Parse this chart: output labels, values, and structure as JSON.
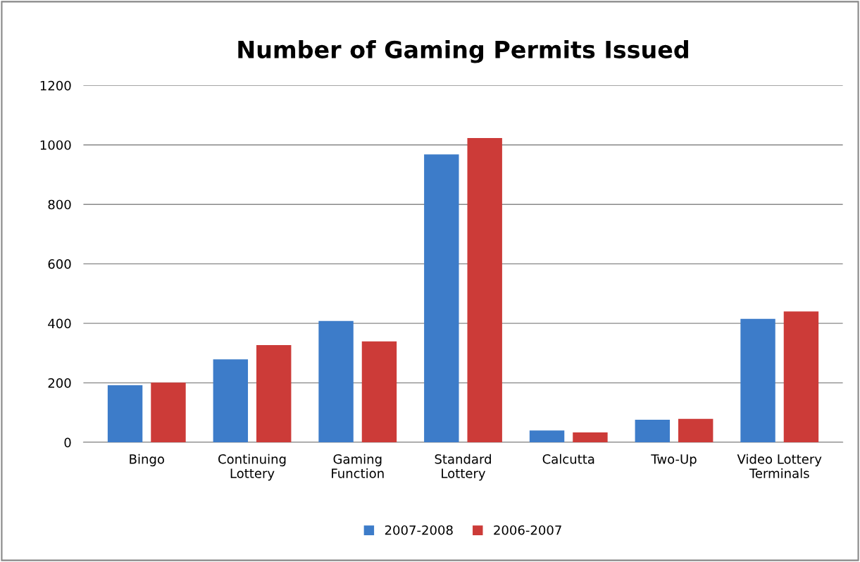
{
  "chart_data": {
    "type": "bar",
    "title": "Number of Gaming Permits Issued",
    "categories": [
      "Bingo",
      "Continuing\nLottery",
      "Gaming\nFunction",
      "Standard\nLottery",
      "Calcutta",
      "Two-Up",
      "Video Lottery\nTerminals"
    ],
    "series": [
      {
        "name": "2007-2008",
        "color": "#3d7cc9",
        "values": [
          192,
          279,
          408,
          968,
          40,
          76,
          415
        ]
      },
      {
        "name": "2006-2007",
        "color": "#cc3b38",
        "values": [
          201,
          327,
          339,
          1023,
          33,
          79,
          440
        ]
      }
    ],
    "ylim": [
      0,
      1200
    ],
    "yticks": [
      0,
      200,
      400,
      600,
      800,
      1000,
      1200
    ],
    "grid": "y",
    "legend": "bottom"
  }
}
